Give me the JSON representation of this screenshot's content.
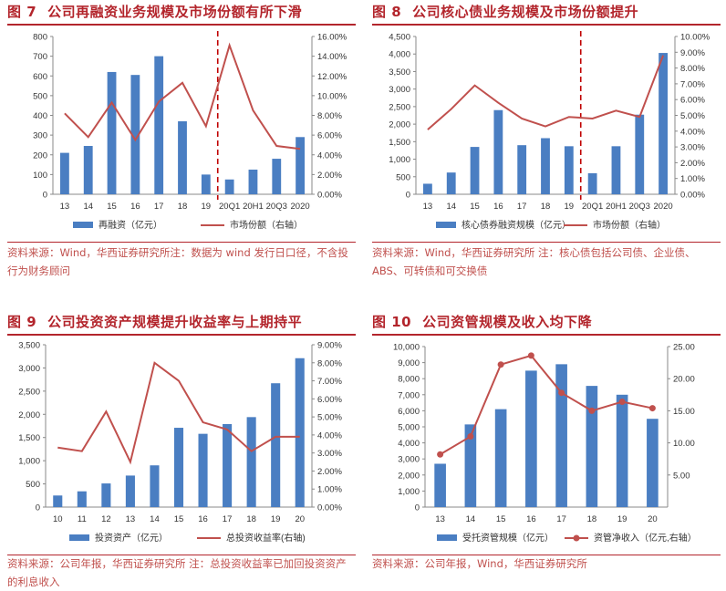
{
  "panels": [
    {
      "id": "fig7",
      "number": "图 7",
      "title": "公司再融资业务规模及市场份额有所下滑",
      "source": "资料来源：Wind，华西证券研究所注：数据为 wind 发行日口径，不含投行为财务顾问",
      "chart_data": {
        "type": "bar",
        "categories": [
          "13",
          "14",
          "15",
          "16",
          "17",
          "18",
          "19",
          "20Q1",
          "20H1",
          "20Q3",
          "2020"
        ],
        "series": [
          {
            "name": "再融资（亿元）",
            "type": "bar",
            "axis": "left",
            "values": [
              210,
              245,
              620,
              605,
              700,
              370,
              100,
              75,
              125,
              180,
              290
            ]
          },
          {
            "name": "市场份额（右轴）",
            "type": "line",
            "axis": "right",
            "values": [
              8.2,
              5.8,
              9.3,
              5.5,
              9.4,
              11.3,
              6.9,
              15.1,
              8.5,
              4.9,
              4.6
            ]
          }
        ],
        "ylim": [
          0,
          800
        ],
        "yticks": [
          "0",
          "100",
          "200",
          "300",
          "400",
          "500",
          "600",
          "700",
          "800"
        ],
        "y2lim": [
          0,
          16
        ],
        "y2ticks": [
          "0.00%",
          "2.00%",
          "4.00%",
          "6.00%",
          "8.00%",
          "10.00%",
          "12.00%",
          "14.00%",
          "16.00%"
        ],
        "divider_after_index": 6,
        "legend_position": "bottom"
      }
    },
    {
      "id": "fig8",
      "number": "图 8",
      "title": "公司核心债业务规模及市场份额提升",
      "source": "资料来源：Wind，华西证券研究所 注：核心债包括公司债、企业债、ABS、可转债和可交换债",
      "chart_data": {
        "type": "bar",
        "categories": [
          "13",
          "14",
          "15",
          "16",
          "17",
          "18",
          "19",
          "20Q1",
          "20H1",
          "20Q3",
          "2020"
        ],
        "series": [
          {
            "name": "核心债券融资规模（亿元）",
            "type": "bar",
            "axis": "left",
            "values": [
              300,
              620,
              1350,
              2400,
              1400,
              1600,
              1370,
              600,
              1370,
              2270,
              4030
            ]
          },
          {
            "name": "市场份额（右轴）",
            "type": "line",
            "axis": "right",
            "values": [
              4.1,
              5.4,
              6.9,
              5.8,
              4.8,
              4.3,
              4.9,
              4.8,
              5.3,
              4.9,
              8.8
            ]
          }
        ],
        "ylim": [
          0,
          4500
        ],
        "yticks": [
          "0",
          "500",
          "1,000",
          "1,500",
          "2,000",
          "2,500",
          "3,000",
          "3,500",
          "4,000",
          "4,500"
        ],
        "y2lim": [
          0,
          10
        ],
        "y2ticks": [
          "0.00%",
          "1.00%",
          "2.00%",
          "3.00%",
          "4.00%",
          "5.00%",
          "6.00%",
          "7.00%",
          "8.00%",
          "9.00%",
          "10.00%"
        ],
        "divider_after_index": 6,
        "legend_position": "bottom"
      }
    },
    {
      "id": "fig9",
      "number": "图 9",
      "title": "公司投资资产规模提升收益率与上期持平",
      "source": "资料来源：公司年报，华西证券研究所 注：总投资收益率已加回投资资产的利息收入",
      "chart_data": {
        "type": "bar",
        "categories": [
          "10",
          "11",
          "12",
          "13",
          "14",
          "15",
          "16",
          "17",
          "18",
          "19",
          "20"
        ],
        "series": [
          {
            "name": "投资资产（亿元）",
            "type": "bar",
            "axis": "left",
            "values": [
              250,
              340,
              510,
              680,
              900,
              1710,
              1580,
              1790,
              1940,
              2670,
              3210
            ]
          },
          {
            "name": "总投资收益率(右轴)",
            "type": "line",
            "axis": "right",
            "values": [
              3.3,
              3.1,
              5.3,
              2.5,
              8.0,
              7.0,
              4.7,
              4.3,
              3.1,
              3.9,
              3.9
            ]
          }
        ],
        "ylim": [
          0,
          3500
        ],
        "yticks": [
          "0",
          "500",
          "1,000",
          "1,500",
          "2,000",
          "2,500",
          "3,000",
          "3,500"
        ],
        "y2lim": [
          0,
          9
        ],
        "y2ticks": [
          "0.00%",
          "1.00%",
          "2.00%",
          "3.00%",
          "4.00%",
          "5.00%",
          "6.00%",
          "7.00%",
          "8.00%",
          "9.00%"
        ],
        "legend_position": "bottom"
      }
    },
    {
      "id": "fig10",
      "number": "图 10",
      "title": "公司资管规模及收入均下降",
      "source": "资料来源：公司年报，Wind，华西证券研究所",
      "chart_data": {
        "type": "bar",
        "categories": [
          "13",
          "14",
          "15",
          "16",
          "17",
          "18",
          "19",
          "20"
        ],
        "series": [
          {
            "name": "受托资管规模（亿元）",
            "type": "bar",
            "axis": "left",
            "values": [
              2700,
              5150,
              6100,
              8500,
              8900,
              7550,
              7000,
              5500
            ]
          },
          {
            "name": "资管净收入（亿元,右轴）",
            "type": "line",
            "axis": "right",
            "values": [
              8.2,
              11.0,
              22.2,
              23.6,
              17.8,
              15.0,
              16.4,
              15.4
            ],
            "markers": true
          }
        ],
        "ylim": [
          0,
          10000
        ],
        "yticks": [
          "0",
          "1,000",
          "2,000",
          "3,000",
          "4,000",
          "5,000",
          "6,000",
          "7,000",
          "8,000",
          "9,000",
          "10,000"
        ],
        "y2lim": [
          0,
          25
        ],
        "y2ticks": [
          "5.00",
          "10.00",
          "15.00",
          "20.00",
          "25.00"
        ],
        "legend_position": "bottom"
      }
    }
  ],
  "colors": {
    "bar": "#4a7ec2",
    "line": "#c0504d",
    "title": "#b3252c",
    "axis": "#888888"
  }
}
